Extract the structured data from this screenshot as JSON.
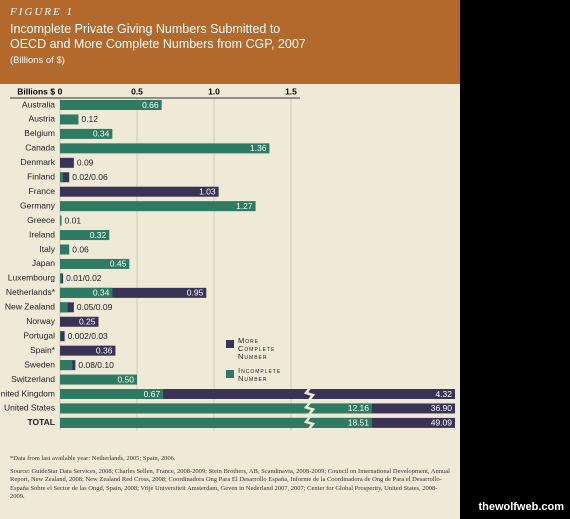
{
  "chart_data": {
    "type": "bar",
    "figure_label": "FIGURE 1",
    "title": "Incomplete Private Giving Numbers Submitted to OECD and More Complete Numbers from CGP, 2007",
    "subtitle": "(Billions of $)",
    "x_label": "Billions $",
    "categories": [
      "Australia",
      "Austria",
      "Belgium",
      "Canada",
      "Denmark",
      "Finland",
      "France",
      "Germany",
      "Greece",
      "Ireland",
      "Italy",
      "Japan",
      "Luxembourg",
      "Netherlands*",
      "New Zealand",
      "Norway",
      "Portugal",
      "Spain*",
      "Sweden",
      "Switzerland",
      "United Kingdom",
      "United States",
      "TOTAL"
    ],
    "series": [
      {
        "name": "More Complete Number",
        "color": "#3b3356",
        "values": [
          null,
          null,
          null,
          null,
          0.09,
          0.06,
          1.03,
          null,
          null,
          null,
          null,
          null,
          0.02,
          0.95,
          0.09,
          0.25,
          0.03,
          0.36,
          0.1,
          null,
          4.32,
          36.9,
          49.09
        ],
        "value_labels": [
          null,
          null,
          null,
          null,
          "0.09",
          null,
          "1.03",
          null,
          null,
          null,
          null,
          null,
          null,
          "0.95",
          null,
          "0.25",
          null,
          "0.36",
          null,
          null,
          "4.32",
          "36.90",
          "49.09"
        ]
      },
      {
        "name": "Incomplete Number",
        "color": "#2f7a62",
        "values": [
          0.66,
          0.12,
          0.34,
          1.36,
          null,
          0.02,
          null,
          1.27,
          0.01,
          0.32,
          0.06,
          0.45,
          0.01,
          0.34,
          0.05,
          null,
          0.002,
          null,
          0.08,
          0.5,
          0.67,
          12.16,
          18.51
        ],
        "value_labels": [
          "0.66",
          "0.12",
          "0.34",
          "1.36",
          null,
          null,
          null,
          "1.27",
          "0.01",
          "0.32",
          "0.06",
          "0.45",
          null,
          "0.34",
          null,
          null,
          null,
          null,
          null,
          "0.50",
          "0.67",
          "12.16",
          "18.51"
        ]
      }
    ],
    "pair_labels": [
      null,
      null,
      null,
      null,
      null,
      "0.02/0.06",
      null,
      null,
      null,
      null,
      null,
      null,
      "0.01/0.02",
      null,
      "0.05/0.09",
      null,
      "0.002/0.03",
      null,
      "0.08/0.10",
      null,
      null,
      null,
      null
    ],
    "xlim": [
      0,
      1.5
    ],
    "xticks": [
      0,
      0.5,
      {
        "value": 1,
        "label": "1.0"
      },
      1.5
    ],
    "grid": true,
    "footnote": "*Data from last available year: Netherlands, 2005; Spain, 2006.",
    "source": "Source: GuideStar Data Services, 2008; Charles Sellen, France, 2008-2009; Stein Brothers, AB, Scandinavia, 2008-2009; Council on International Development, Annual Report, New Zealand, 2008; New Zealand Red Cross, 2008; Coordinadora Ong Para El Desarrollo España, Informe de la Coordinadora de Ong de Para el Desarrollo-España Sobre el Sector de las Ongd, Spain, 2008; Vrije Universiteit Amsterdam, Geven in Nederland 2007, 2007; Center for Global Prosperity, United States, 2008-2009."
  },
  "watermark": "thewolfweb.com"
}
